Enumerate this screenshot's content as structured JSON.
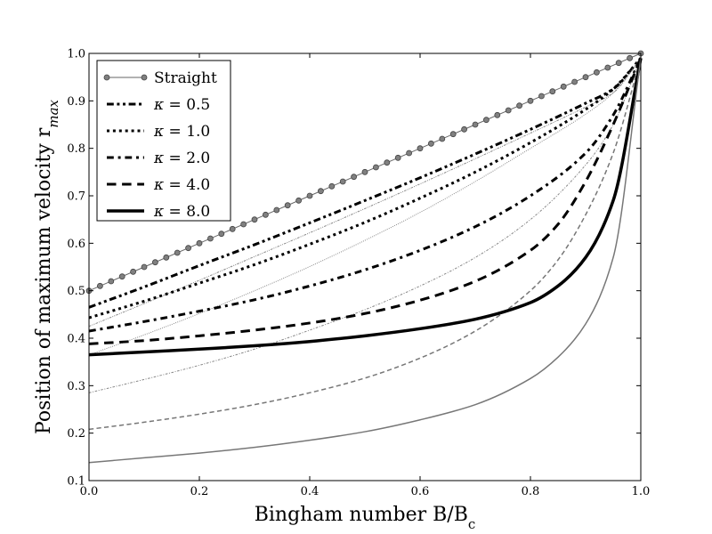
{
  "chart_data": {
    "type": "line",
    "title": "",
    "xlabel": "Bingham number B/B",
    "xlabel_sub": "c",
    "ylabel": "Position of maximum velocity r",
    "ylabel_sub": "max",
    "xlim": [
      0.0,
      1.0
    ],
    "ylim": [
      0.1,
      1.0
    ],
    "x_ticks": [
      0.0,
      0.2,
      0.4,
      0.6,
      0.8,
      1.0
    ],
    "x_tick_labels": [
      "0.0",
      "0.2",
      "0.4",
      "0.6",
      "0.8",
      "1.0"
    ],
    "y_ticks": [
      0.1,
      0.2,
      0.3,
      0.4,
      0.5,
      0.6,
      0.7,
      0.8,
      0.9,
      1.0
    ],
    "y_tick_labels": [
      "0.1",
      "0.2",
      "0.3",
      "0.4",
      "0.5",
      "0.6",
      "0.7",
      "0.8",
      "0.9",
      "1.0"
    ],
    "grid": false,
    "legend_position": "top-left",
    "legend": [
      {
        "symbol": "",
        "label": "Straight"
      },
      {
        "symbol": "κ",
        "label": " = 0.5"
      },
      {
        "symbol": "κ",
        "label": " = 1.0"
      },
      {
        "symbol": "κ",
        "label": " = 2.0"
      },
      {
        "symbol": "κ",
        "label": " = 4.0"
      },
      {
        "symbol": "κ",
        "label": " = 8.0"
      }
    ],
    "series": [
      {
        "name": "Straight",
        "color": "#666666",
        "marker": "circle",
        "style": "solid",
        "width": 1,
        "x": [
          0,
          0.2,
          0.4,
          0.6,
          0.8,
          1.0
        ],
        "y": [
          0.5,
          0.6,
          0.7,
          0.8,
          0.9,
          1.0
        ]
      },
      {
        "name": "κ = 0.5 (outer)",
        "color": "#000000",
        "style": "dashdotdot",
        "width": 3,
        "x": [
          0,
          0.1,
          0.2,
          0.3,
          0.4,
          0.5,
          0.6,
          0.7,
          0.8,
          0.9,
          0.95,
          1.0
        ],
        "y": [
          0.465,
          0.508,
          0.553,
          0.597,
          0.643,
          0.69,
          0.738,
          0.788,
          0.84,
          0.895,
          0.925,
          0.99
        ]
      },
      {
        "name": "κ = 0.5 (inner)",
        "color": "#888888",
        "style": "dashdotdot",
        "width": 1,
        "x": [
          0,
          0.1,
          0.2,
          0.3,
          0.4,
          0.5,
          0.6,
          0.7,
          0.8,
          0.9,
          0.95,
          1.0
        ],
        "y": [
          0.425,
          0.473,
          0.522,
          0.572,
          0.622,
          0.673,
          0.725,
          0.778,
          0.832,
          0.887,
          0.917,
          0.99
        ]
      },
      {
        "name": "κ = 1.0 (outer)",
        "color": "#000000",
        "style": "dotted",
        "width": 3,
        "x": [
          0,
          0.1,
          0.2,
          0.3,
          0.4,
          0.5,
          0.6,
          0.7,
          0.8,
          0.9,
          0.95,
          1.0
        ],
        "y": [
          0.443,
          0.478,
          0.516,
          0.555,
          0.598,
          0.644,
          0.695,
          0.75,
          0.812,
          0.882,
          0.925,
          0.99
        ]
      },
      {
        "name": "κ = 1.0 (inner)",
        "color": "#888888",
        "style": "dotted",
        "width": 1,
        "x": [
          0,
          0.1,
          0.2,
          0.3,
          0.4,
          0.5,
          0.6,
          0.7,
          0.8,
          0.9,
          0.95,
          1.0
        ],
        "y": [
          0.365,
          0.407,
          0.452,
          0.5,
          0.551,
          0.606,
          0.665,
          0.73,
          0.8,
          0.872,
          0.917,
          0.99
        ]
      },
      {
        "name": "κ = 2.0 (outer)",
        "color": "#000000",
        "style": "dashdot",
        "width": 3,
        "x": [
          0,
          0.1,
          0.2,
          0.3,
          0.4,
          0.5,
          0.6,
          0.7,
          0.8,
          0.9,
          0.95,
          1.0
        ],
        "y": [
          0.415,
          0.435,
          0.457,
          0.481,
          0.51,
          0.544,
          0.585,
          0.635,
          0.7,
          0.79,
          0.87,
          0.99
        ]
      },
      {
        "name": "κ = 2.0 (inner)",
        "color": "#888888",
        "style": "dashdot",
        "width": 1,
        "x": [
          0,
          0.1,
          0.2,
          0.3,
          0.4,
          0.5,
          0.6,
          0.7,
          0.8,
          0.9,
          0.95,
          1.0
        ],
        "y": [
          0.285,
          0.313,
          0.343,
          0.377,
          0.417,
          0.46,
          0.51,
          0.57,
          0.65,
          0.765,
          0.85,
          0.99
        ]
      },
      {
        "name": "κ = 4.0 (outer)",
        "color": "#000000",
        "style": "dashed",
        "width": 3,
        "x": [
          0,
          0.1,
          0.2,
          0.3,
          0.4,
          0.5,
          0.6,
          0.7,
          0.8,
          0.85,
          0.9,
          0.95,
          1.0
        ],
        "y": [
          0.388,
          0.395,
          0.405,
          0.417,
          0.432,
          0.452,
          0.48,
          0.52,
          0.585,
          0.64,
          0.73,
          0.85,
          0.99
        ]
      },
      {
        "name": "κ = 4.0 (inner)",
        "color": "#777777",
        "style": "dashed",
        "width": 1.5,
        "x": [
          0,
          0.1,
          0.2,
          0.3,
          0.4,
          0.5,
          0.6,
          0.7,
          0.8,
          0.85,
          0.9,
          0.95,
          1.0
        ],
        "y": [
          0.208,
          0.223,
          0.24,
          0.26,
          0.285,
          0.316,
          0.358,
          0.415,
          0.5,
          0.565,
          0.66,
          0.79,
          0.99
        ]
      },
      {
        "name": "κ = 8.0 (outer)",
        "color": "#000000",
        "style": "solid",
        "width": 3.5,
        "x": [
          0,
          0.1,
          0.2,
          0.3,
          0.4,
          0.5,
          0.6,
          0.7,
          0.8,
          0.85,
          0.9,
          0.95,
          1.0
        ],
        "y": [
          0.365,
          0.371,
          0.377,
          0.384,
          0.393,
          0.405,
          0.42,
          0.44,
          0.475,
          0.51,
          0.57,
          0.69,
          0.99
        ]
      },
      {
        "name": "κ = 8.0 (inner)",
        "color": "#777777",
        "style": "solid",
        "width": 1.5,
        "x": [
          0,
          0.1,
          0.2,
          0.3,
          0.4,
          0.5,
          0.6,
          0.7,
          0.8,
          0.85,
          0.9,
          0.95,
          1.0
        ],
        "y": [
          0.138,
          0.148,
          0.158,
          0.17,
          0.185,
          0.203,
          0.228,
          0.26,
          0.315,
          0.36,
          0.43,
          0.57,
          0.99
        ]
      }
    ]
  }
}
